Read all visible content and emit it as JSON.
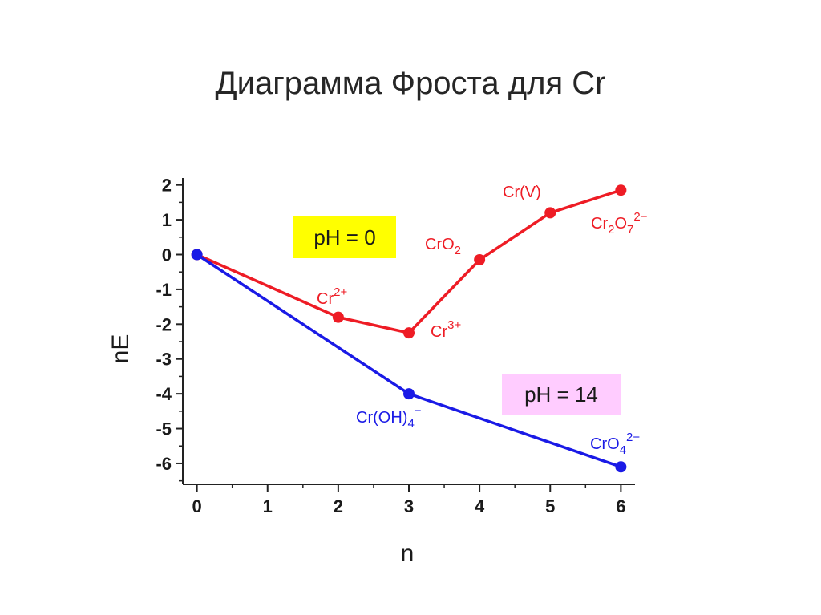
{
  "chart_data": {
    "type": "line",
    "title": "Диаграмма Фроста для Cr",
    "xlabel": "n",
    "ylabel": "nE",
    "xlim": [
      -0.2,
      6.2
    ],
    "ylim": [
      -6.6,
      2.2
    ],
    "x_ticks": [
      "0",
      "1",
      "2",
      "3",
      "4",
      "5",
      "6"
    ],
    "y_ticks": [
      "2",
      "1",
      "0",
      "-1",
      "-2",
      "-3",
      "-4",
      "-5",
      "-6"
    ],
    "grid": false,
    "series": [
      {
        "name": "pH = 0",
        "color": "#ee1c25",
        "x": [
          0,
          2,
          3,
          4,
          5,
          6
        ],
        "y": [
          0,
          -1.8,
          -2.25,
          -0.15,
          1.2,
          1.85
        ],
        "labels": [
          {
            "text": "Cr",
            "sup": "2+"
          },
          {
            "text": "Cr",
            "sup": "3+"
          },
          {
            "text": "CrO",
            "sub": "2"
          },
          {
            "text": "Cr(V)"
          },
          {
            "text": "Cr",
            "sub": "2",
            "text2": "O",
            "sub2": "7",
            "sup2": "2−"
          }
        ]
      },
      {
        "name": "pH = 14",
        "color": "#1a1ae6",
        "x": [
          0,
          3,
          6
        ],
        "y": [
          0,
          -4.0,
          -6.1
        ],
        "labels": [
          {
            "text": "Cr(OH)",
            "sub": "4",
            "sup": "−"
          },
          {
            "text": "CrO",
            "sub": "4",
            "sup": "2−"
          }
        ]
      }
    ],
    "annotations": [
      {
        "text": "pH = 0",
        "bg": "#ffff00"
      },
      {
        "text": "pH = 14",
        "bg": "#ffccff"
      }
    ]
  }
}
